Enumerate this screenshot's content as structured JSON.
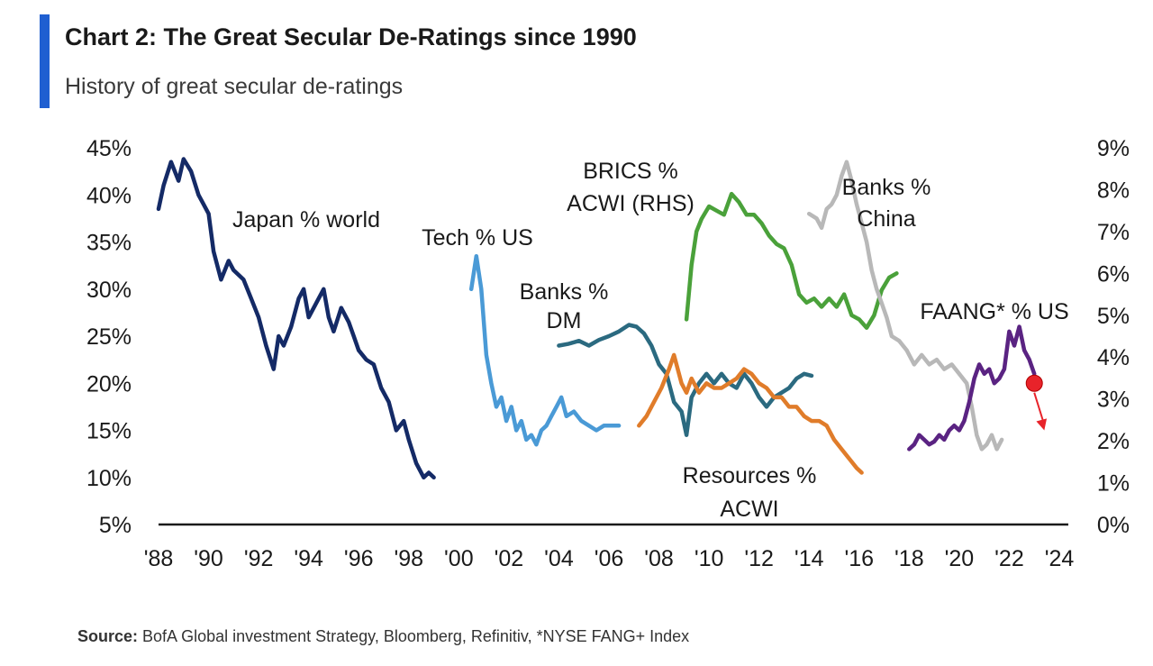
{
  "header": {
    "title": "Chart 2: The Great Secular De-Ratings since 1990",
    "subtitle": "History of great secular de-ratings"
  },
  "footer": {
    "source_label": "Source:",
    "source_text": " BofA Global investment Strategy, Bloomberg, Refinitiv, *NYSE FANG+ Index"
  },
  "chart_data": {
    "type": "line",
    "title": "Chart 2: The Great Secular De-Ratings since 1990",
    "subtitle": "History of great secular de-ratings",
    "x_range": [
      1988,
      2024
    ],
    "x_ticks": [
      "'88",
      "'90",
      "'92",
      "'94",
      "'96",
      "'98",
      "'00",
      "'02",
      "'04",
      "'06",
      "'08",
      "'10",
      "'12",
      "'14",
      "'16",
      "'18",
      "'20",
      "'22",
      "'24"
    ],
    "y_left": {
      "range": [
        5,
        45
      ],
      "ticks": [
        "5%",
        "10%",
        "15%",
        "20%",
        "25%",
        "30%",
        "35%",
        "40%",
        "45%"
      ]
    },
    "y_right": {
      "range": [
        0,
        9
      ],
      "ticks": [
        "0%",
        "1%",
        "2%",
        "3%",
        "4%",
        "5%",
        "6%",
        "7%",
        "8%",
        "9%"
      ]
    },
    "series": [
      {
        "name": "Japan % world",
        "label_lines": [
          "Japan % world"
        ],
        "color": "#142a66",
        "axis": "left",
        "points": [
          [
            1988.0,
            38.5
          ],
          [
            1988.2,
            41
          ],
          [
            1988.5,
            43.5
          ],
          [
            1988.8,
            41.5
          ],
          [
            1989.0,
            43.8
          ],
          [
            1989.3,
            42.5
          ],
          [
            1989.6,
            40
          ],
          [
            1989.8,
            39
          ],
          [
            1990.0,
            38
          ],
          [
            1990.2,
            34
          ],
          [
            1990.5,
            31
          ],
          [
            1990.8,
            33
          ],
          [
            1991.0,
            32
          ],
          [
            1991.4,
            31
          ],
          [
            1991.7,
            29
          ],
          [
            1992.0,
            27
          ],
          [
            1992.3,
            24
          ],
          [
            1992.6,
            21.5
          ],
          [
            1992.8,
            25
          ],
          [
            1993.0,
            24
          ],
          [
            1993.3,
            26
          ],
          [
            1993.6,
            29
          ],
          [
            1993.8,
            30
          ],
          [
            1994.0,
            27
          ],
          [
            1994.3,
            28.5
          ],
          [
            1994.6,
            30
          ],
          [
            1994.8,
            27
          ],
          [
            1995.0,
            25.5
          ],
          [
            1995.3,
            28
          ],
          [
            1995.6,
            26.5
          ],
          [
            1995.8,
            25
          ],
          [
            1996.0,
            23.5
          ],
          [
            1996.3,
            22.5
          ],
          [
            1996.6,
            22
          ],
          [
            1996.9,
            19.5
          ],
          [
            1997.2,
            18
          ],
          [
            1997.5,
            15
          ],
          [
            1997.8,
            16
          ],
          [
            1998.0,
            14
          ],
          [
            1998.3,
            11.5
          ],
          [
            1998.6,
            10
          ],
          [
            1998.8,
            10.5
          ],
          [
            1999.0,
            10
          ]
        ]
      },
      {
        "name": "Tech % US",
        "label_lines": [
          "Tech % US"
        ],
        "color": "#4a9ad6",
        "axis": "left",
        "points": [
          [
            2000.5,
            30
          ],
          [
            2000.7,
            33.5
          ],
          [
            2000.9,
            30
          ],
          [
            2001.1,
            23
          ],
          [
            2001.3,
            20
          ],
          [
            2001.5,
            17.5
          ],
          [
            2001.7,
            18.5
          ],
          [
            2001.9,
            16
          ],
          [
            2002.1,
            17.5
          ],
          [
            2002.3,
            15
          ],
          [
            2002.5,
            16
          ],
          [
            2002.7,
            14
          ],
          [
            2002.9,
            14.5
          ],
          [
            2003.1,
            13.5
          ],
          [
            2003.3,
            15
          ],
          [
            2003.5,
            15.5
          ],
          [
            2003.7,
            16.5
          ],
          [
            2003.9,
            17.5
          ],
          [
            2004.1,
            18.5
          ],
          [
            2004.3,
            16.5
          ],
          [
            2004.6,
            17
          ],
          [
            2004.9,
            16
          ],
          [
            2005.2,
            15.5
          ],
          [
            2005.5,
            15
          ],
          [
            2005.8,
            15.5
          ],
          [
            2006.1,
            15.5
          ],
          [
            2006.4,
            15.5
          ]
        ]
      },
      {
        "name": "Banks % DM",
        "label_lines": [
          "Banks %",
          "DM"
        ],
        "color": "#2b6a80",
        "axis": "left",
        "points": [
          [
            2004.0,
            24
          ],
          [
            2004.4,
            24.2
          ],
          [
            2004.8,
            24.5
          ],
          [
            2005.2,
            24
          ],
          [
            2005.6,
            24.6
          ],
          [
            2006.0,
            25
          ],
          [
            2006.4,
            25.5
          ],
          [
            2006.8,
            26.2
          ],
          [
            2007.1,
            26
          ],
          [
            2007.4,
            25.3
          ],
          [
            2007.7,
            24
          ],
          [
            2008.0,
            22
          ],
          [
            2008.3,
            21
          ],
          [
            2008.6,
            18
          ],
          [
            2008.9,
            17
          ],
          [
            2009.1,
            14.5
          ],
          [
            2009.3,
            18.5
          ],
          [
            2009.6,
            20
          ],
          [
            2009.9,
            21
          ],
          [
            2010.2,
            20
          ],
          [
            2010.5,
            21
          ],
          [
            2010.8,
            20
          ],
          [
            2011.1,
            19.5
          ],
          [
            2011.4,
            21
          ],
          [
            2011.7,
            20
          ],
          [
            2012.0,
            18.5
          ],
          [
            2012.3,
            17.5
          ],
          [
            2012.6,
            18.5
          ],
          [
            2012.9,
            19
          ],
          [
            2013.2,
            19.5
          ],
          [
            2013.5,
            20.5
          ],
          [
            2013.8,
            21
          ],
          [
            2014.1,
            20.8
          ]
        ]
      },
      {
        "name": "Resources % ACWI",
        "label_lines": [
          "Resources %",
          "ACWI"
        ],
        "color": "#e07c2a",
        "axis": "left",
        "points": [
          [
            2007.2,
            15.5
          ],
          [
            2007.5,
            16.5
          ],
          [
            2007.8,
            18
          ],
          [
            2008.1,
            19.5
          ],
          [
            2008.4,
            21.5
          ],
          [
            2008.6,
            23
          ],
          [
            2008.9,
            20
          ],
          [
            2009.1,
            19
          ],
          [
            2009.3,
            20.5
          ],
          [
            2009.6,
            19
          ],
          [
            2009.9,
            20
          ],
          [
            2010.2,
            19.5
          ],
          [
            2010.5,
            19.5
          ],
          [
            2010.8,
            20
          ],
          [
            2011.1,
            20.5
          ],
          [
            2011.4,
            21.5
          ],
          [
            2011.7,
            21
          ],
          [
            2012.0,
            20
          ],
          [
            2012.3,
            19.5
          ],
          [
            2012.6,
            18.5
          ],
          [
            2012.9,
            18.5
          ],
          [
            2013.2,
            17.5
          ],
          [
            2013.5,
            17.5
          ],
          [
            2013.8,
            16.5
          ],
          [
            2014.1,
            16
          ],
          [
            2014.4,
            16
          ],
          [
            2014.7,
            15.5
          ],
          [
            2015.0,
            14
          ],
          [
            2015.3,
            13
          ],
          [
            2015.6,
            12
          ],
          [
            2015.9,
            11
          ],
          [
            2016.1,
            10.5
          ]
        ]
      },
      {
        "name": "BRICS % ACWI (RHS)",
        "label_lines": [
          "BRICS %",
          "ACWI (RHS)"
        ],
        "color": "#4aa13a",
        "axis": "right",
        "points": [
          [
            2009.1,
            4.9
          ],
          [
            2009.3,
            6.2
          ],
          [
            2009.5,
            7.0
          ],
          [
            2009.7,
            7.3
          ],
          [
            2010.0,
            7.6
          ],
          [
            2010.3,
            7.5
          ],
          [
            2010.6,
            7.4
          ],
          [
            2010.9,
            7.9
          ],
          [
            2011.2,
            7.7
          ],
          [
            2011.5,
            7.4
          ],
          [
            2011.8,
            7.4
          ],
          [
            2012.1,
            7.2
          ],
          [
            2012.4,
            6.9
          ],
          [
            2012.7,
            6.7
          ],
          [
            2013.0,
            6.6
          ],
          [
            2013.3,
            6.2
          ],
          [
            2013.6,
            5.5
          ],
          [
            2013.9,
            5.3
          ],
          [
            2014.2,
            5.4
          ],
          [
            2014.5,
            5.2
          ],
          [
            2014.8,
            5.4
          ],
          [
            2015.1,
            5.2
          ],
          [
            2015.4,
            5.5
          ],
          [
            2015.7,
            5.0
          ],
          [
            2016.0,
            4.9
          ],
          [
            2016.3,
            4.7
          ],
          [
            2016.6,
            5.0
          ],
          [
            2016.9,
            5.6
          ],
          [
            2017.2,
            5.9
          ],
          [
            2017.5,
            6.0
          ]
        ]
      },
      {
        "name": "Banks % China",
        "label_lines": [
          "Banks %",
          "China"
        ],
        "color": "#b8b8b8",
        "axis": "left",
        "points": [
          [
            2014.0,
            38
          ],
          [
            2014.3,
            37.5
          ],
          [
            2014.5,
            36.5
          ],
          [
            2014.7,
            38.5
          ],
          [
            2014.9,
            39
          ],
          [
            2015.1,
            40
          ],
          [
            2015.3,
            42
          ],
          [
            2015.5,
            43.5
          ],
          [
            2015.7,
            41.5
          ],
          [
            2015.9,
            39
          ],
          [
            2016.1,
            37
          ],
          [
            2016.3,
            35
          ],
          [
            2016.5,
            32
          ],
          [
            2016.7,
            30
          ],
          [
            2016.9,
            28.5
          ],
          [
            2017.1,
            27
          ],
          [
            2017.3,
            25
          ],
          [
            2017.6,
            24.5
          ],
          [
            2017.9,
            23.5
          ],
          [
            2018.2,
            22
          ],
          [
            2018.5,
            23
          ],
          [
            2018.8,
            22
          ],
          [
            2019.1,
            22.5
          ],
          [
            2019.4,
            21.5
          ],
          [
            2019.7,
            22
          ],
          [
            2020.0,
            21
          ],
          [
            2020.3,
            20
          ],
          [
            2020.5,
            17.5
          ],
          [
            2020.7,
            14.5
          ],
          [
            2020.9,
            13
          ],
          [
            2021.1,
            13.5
          ],
          [
            2021.3,
            14.5
          ],
          [
            2021.5,
            13
          ],
          [
            2021.7,
            14
          ]
        ]
      },
      {
        "name": "FAANG* % US",
        "label_lines": [
          "FAANG* % US"
        ],
        "color": "#5a2382",
        "axis": "left",
        "points": [
          [
            2018.0,
            13
          ],
          [
            2018.2,
            13.5
          ],
          [
            2018.4,
            14.5
          ],
          [
            2018.6,
            14
          ],
          [
            2018.8,
            13.5
          ],
          [
            2019.0,
            13.8
          ],
          [
            2019.2,
            14.5
          ],
          [
            2019.4,
            14
          ],
          [
            2019.6,
            15
          ],
          [
            2019.8,
            15.5
          ],
          [
            2020.0,
            15
          ],
          [
            2020.2,
            16
          ],
          [
            2020.4,
            18
          ],
          [
            2020.6,
            20.5
          ],
          [
            2020.8,
            22
          ],
          [
            2021.0,
            21
          ],
          [
            2021.2,
            21.5
          ],
          [
            2021.4,
            20
          ],
          [
            2021.6,
            20.5
          ],
          [
            2021.8,
            21.5
          ],
          [
            2022.0,
            25.5
          ],
          [
            2022.2,
            24
          ],
          [
            2022.4,
            26
          ],
          [
            2022.6,
            23.5
          ],
          [
            2022.8,
            22.5
          ],
          [
            2023.0,
            21
          ]
        ]
      }
    ],
    "annotations": [
      {
        "type": "marker",
        "series": "FAANG* % US",
        "x": 2023.0,
        "y": 20.0,
        "color": "#e8232a"
      },
      {
        "type": "arrow",
        "from": [
          2023.0,
          19.0
        ],
        "to": [
          2023.4,
          15.0
        ],
        "color": "#e8232a"
      }
    ]
  }
}
